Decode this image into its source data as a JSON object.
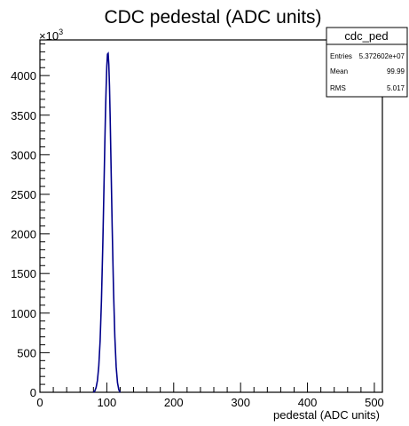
{
  "chart_data": {
    "type": "histogram",
    "title": "CDC pedestal (ADC units)",
    "xlabel": "pedestal (ADC units)",
    "ylabel": "",
    "xlim": [
      0,
      512
    ],
    "ylim": [
      0,
      4450000
    ],
    "y_multiplier_label": "×10",
    "y_multiplier_exp": "3",
    "x_ticks": [
      0,
      100,
      200,
      300,
      400,
      500
    ],
    "x_tick_labels": [
      "0",
      "100",
      "200",
      "300",
      "400",
      "500"
    ],
    "y_ticks": [
      0,
      500000,
      1000000,
      1500000,
      2000000,
      2500000,
      3000000,
      3500000,
      4000000
    ],
    "y_tick_labels": [
      "0",
      "500",
      "1000",
      "1500",
      "2000",
      "2500",
      "3000",
      "3500",
      "4000"
    ],
    "grid": false,
    "legend": "none",
    "line_color": "#00008b",
    "series": [
      {
        "x": [
          80,
          82,
          84,
          86,
          88,
          90,
          92,
          94,
          95,
          96,
          97,
          98,
          99,
          100,
          101,
          102,
          103,
          104,
          105,
          106,
          108,
          110,
          112,
          114,
          116,
          118,
          120
        ],
        "y": [
          0,
          15000,
          60000,
          150000,
          330000,
          650000,
          1160000,
          1860000,
          2270000,
          2700000,
          3130000,
          3530000,
          3850000,
          4120000,
          4270000,
          4280000,
          4140000,
          3870000,
          3480000,
          3020000,
          2100000,
          1300000,
          700000,
          320000,
          120000,
          30000,
          0
        ]
      }
    ],
    "stats_box": {
      "name": "cdc_ped",
      "entries_label": "Entries",
      "entries_value": "5.372602e+07",
      "mean_label": "Mean",
      "mean_value": "99.99",
      "rms_label": "RMS",
      "rms_value": "5.017"
    }
  }
}
